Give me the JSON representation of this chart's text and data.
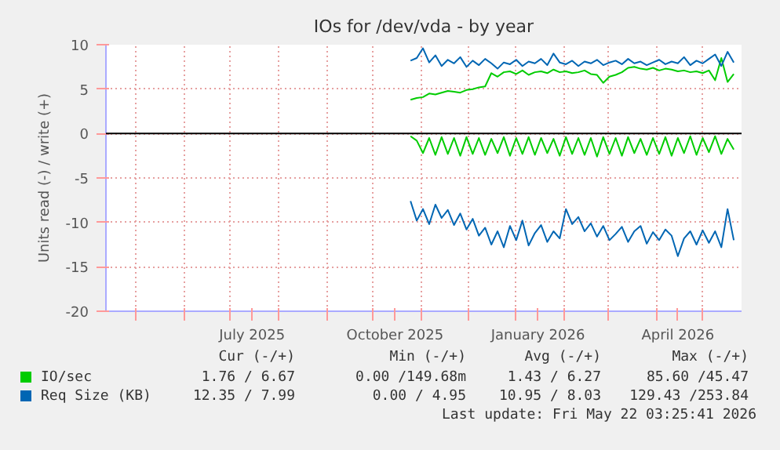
{
  "chart_data": {
    "type": "line",
    "title": "IOs for /dev/vda - by year",
    "ylabel": "Units read (-) / write (+)",
    "x": [
      "2025-10-25",
      "2025-10-29",
      "2025-11-02",
      "2025-11-06",
      "2025-11-10",
      "2025-11-14",
      "2025-11-18",
      "2025-11-22",
      "2025-11-26",
      "2025-11-30",
      "2025-12-04",
      "2025-12-08",
      "2025-12-12",
      "2025-12-16",
      "2025-12-20",
      "2025-12-24",
      "2025-12-28",
      "2026-01-01",
      "2026-01-05",
      "2026-01-09",
      "2026-01-13",
      "2026-01-17",
      "2026-01-21",
      "2026-01-25",
      "2026-01-29",
      "2026-02-02",
      "2026-02-06",
      "2026-02-10",
      "2026-02-14",
      "2026-02-18",
      "2026-02-22",
      "2026-02-26",
      "2026-03-02",
      "2026-03-06",
      "2026-03-10",
      "2026-03-14",
      "2026-03-18",
      "2026-03-22",
      "2026-03-26",
      "2026-03-30",
      "2026-04-03",
      "2026-04-07",
      "2026-04-11",
      "2026-04-15",
      "2026-04-19",
      "2026-04-23",
      "2026-04-27",
      "2026-05-01",
      "2026-05-05",
      "2026-05-09",
      "2026-05-13",
      "2026-05-17",
      "2026-05-21"
    ],
    "series": [
      {
        "name": "IO/sec",
        "color": "#00cc00",
        "values": [
          3.8,
          4.0,
          4.1,
          4.5,
          4.4,
          4.6,
          4.8,
          4.7,
          4.6,
          4.9,
          5.0,
          5.2,
          5.3,
          6.8,
          6.4,
          6.9,
          7.0,
          6.7,
          7.1,
          6.6,
          6.9,
          7.0,
          6.8,
          7.2,
          6.9,
          7.0,
          6.8,
          6.9,
          7.1,
          6.7,
          6.6,
          5.7,
          6.4,
          6.6,
          6.9,
          7.4,
          7.5,
          7.3,
          7.2,
          7.4,
          7.1,
          7.3,
          7.2,
          7.0,
          7.1,
          6.9,
          7.0,
          6.8,
          7.1,
          6.0,
          8.5,
          5.8,
          6.7
        ]
      },
      {
        "color": "#00cc00",
        "values": [
          -0.3,
          -0.8,
          -2.2,
          -0.5,
          -2.4,
          -0.4,
          -2.3,
          -0.5,
          -2.5,
          -0.4,
          -2.3,
          -0.5,
          -2.4,
          -0.6,
          -2.2,
          -0.4,
          -2.5,
          -0.5,
          -2.3,
          -0.4,
          -2.4,
          -0.5,
          -2.2,
          -0.6,
          -2.5,
          -0.4,
          -2.3,
          -0.5,
          -2.4,
          -0.5,
          -2.6,
          -0.4,
          -2.3,
          -0.5,
          -2.5,
          -0.4,
          -2.2,
          -0.6,
          -2.4,
          -0.5,
          -2.3,
          -0.4,
          -2.5,
          -0.5,
          -2.2,
          -0.3,
          -2.4,
          -0.5,
          -2.1,
          -0.3,
          -2.3,
          -0.6,
          -1.8
        ]
      },
      {
        "name": "Req Size (KB)",
        "color": "#0066b3",
        "values": [
          8.2,
          8.5,
          9.6,
          8.0,
          8.8,
          7.6,
          8.3,
          7.9,
          8.6,
          7.5,
          8.2,
          7.7,
          8.4,
          7.9,
          7.3,
          8.0,
          7.8,
          8.3,
          7.6,
          8.1,
          7.9,
          8.4,
          7.7,
          9.0,
          8.0,
          7.8,
          8.2,
          7.6,
          8.1,
          7.9,
          8.3,
          7.7,
          8.0,
          8.2,
          7.8,
          8.4,
          7.9,
          8.1,
          7.7,
          8.0,
          8.3,
          7.8,
          8.1,
          7.9,
          8.6,
          7.7,
          8.2,
          7.9,
          8.4,
          8.9,
          7.6,
          9.2,
          8.0
        ]
      },
      {
        "color": "#0066b3",
        "values": [
          -7.6,
          -9.8,
          -8.5,
          -10.2,
          -8.0,
          -9.5,
          -8.6,
          -10.3,
          -9.0,
          -10.8,
          -9.6,
          -11.5,
          -10.6,
          -12.5,
          -11.0,
          -12.8,
          -10.4,
          -12.0,
          -9.8,
          -12.6,
          -11.2,
          -10.3,
          -12.2,
          -11.0,
          -11.8,
          -8.5,
          -10.2,
          -9.4,
          -11.0,
          -10.1,
          -11.6,
          -10.4,
          -12.0,
          -11.3,
          -10.5,
          -12.2,
          -11.0,
          -10.4,
          -12.4,
          -11.1,
          -12.0,
          -10.8,
          -11.5,
          -13.8,
          -11.8,
          -11.0,
          -12.5,
          -10.9,
          -12.3,
          -11.0,
          -12.8,
          -8.5,
          -12.0
        ]
      }
    ],
    "xlim": [
      "2025-04-12",
      "2026-05-26"
    ],
    "xticks": [
      {
        "value": "2025-05-01",
        "label": null
      },
      {
        "value": "2025-06-01",
        "label": null
      },
      {
        "value": "2025-07-01",
        "label": null
      },
      {
        "value": "2025-07-15",
        "label": "July 2025"
      },
      {
        "value": "2025-08-01",
        "label": null
      },
      {
        "value": "2025-09-01",
        "label": null
      },
      {
        "value": "2025-10-01",
        "label": null
      },
      {
        "value": "2025-10-15",
        "label": "October 2025"
      },
      {
        "value": "2025-11-01",
        "label": null
      },
      {
        "value": "2025-12-01",
        "label": null
      },
      {
        "value": "2026-01-01",
        "label": null
      },
      {
        "value": "2026-01-15",
        "label": "January 2026"
      },
      {
        "value": "2026-02-01",
        "label": null
      },
      {
        "value": "2026-03-01",
        "label": null
      },
      {
        "value": "2026-04-01",
        "label": null
      },
      {
        "value": "2026-04-15",
        "label": "April 2026"
      },
      {
        "value": "2026-05-01",
        "label": null
      }
    ],
    "ylim": [
      -20,
      10
    ],
    "yticks": [
      -20,
      -15,
      -10,
      -5,
      0,
      5,
      10
    ],
    "grid": true,
    "ref_lines": [
      {
        "axis": "y",
        "value": 0,
        "color": "#000000"
      }
    ],
    "legend": "bottom",
    "annotations": [
      "Cur (-/+)",
      "Min (-/+)",
      "Avg (-/+)",
      "Max (-/+)",
      "1.76 / 6.67",
      "0.00 /149.68m",
      "1.43 / 6.27",
      "85.60 /45.47",
      "12.35 / 7.99",
      "0.00 / 4.95",
      "10.95 / 8.03",
      "129.43 /253.84",
      "Last update: Fri May 22 03:25:41 2026"
    ]
  }
}
